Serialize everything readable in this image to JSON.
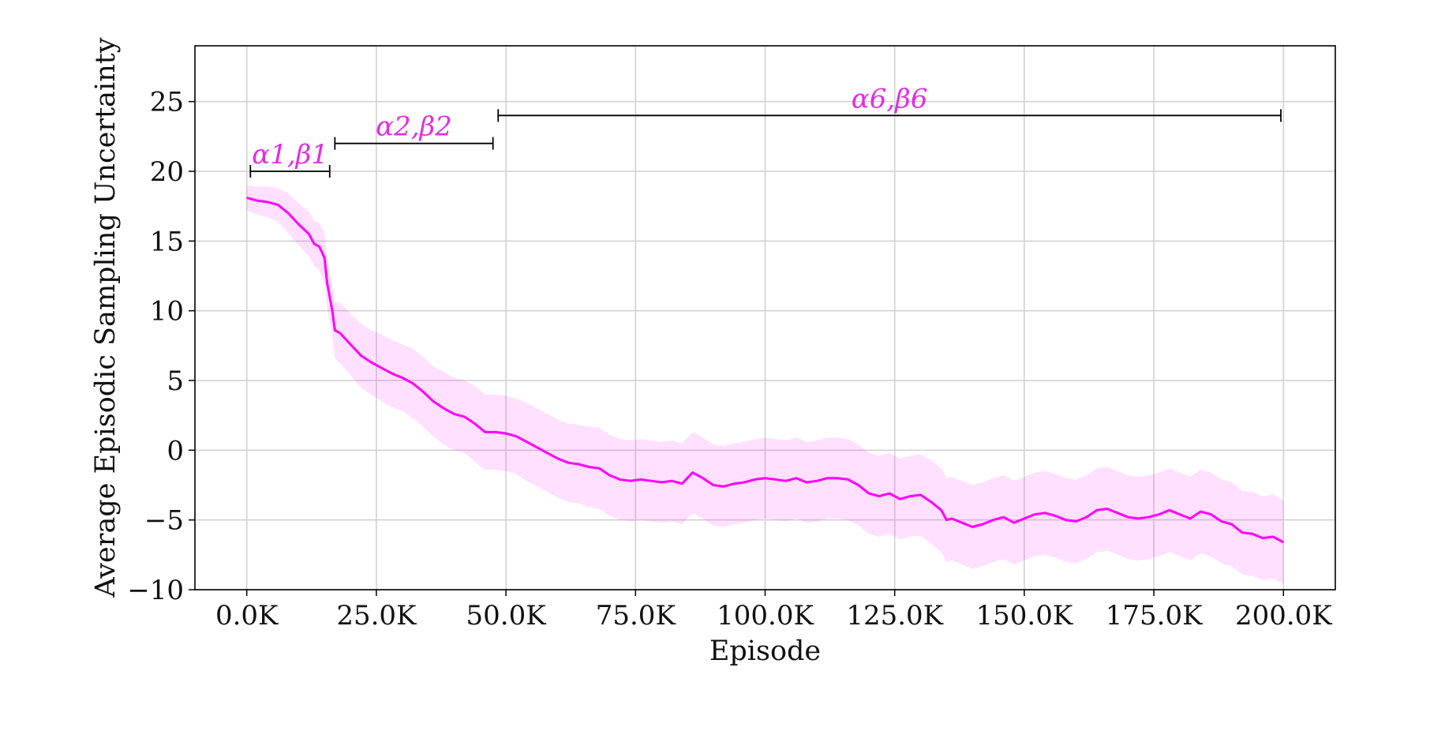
{
  "chart_data": {
    "type": "line",
    "title": "",
    "xlabel": "Episode",
    "ylabel": "Average Episodic Sampling Uncertainty",
    "xlim": [
      -10000,
      210000
    ],
    "ylim": [
      -10,
      29
    ],
    "grid": true,
    "colors": {
      "line": "#ff00ff",
      "band": "#ff00ff",
      "band_opacity": 0.12,
      "bracket": "#000000",
      "annotation": "#e22de2"
    },
    "x_ticks": [
      {
        "value": 0,
        "label": "0.0K"
      },
      {
        "value": 25000,
        "label": "25.0K"
      },
      {
        "value": 50000,
        "label": "50.0K"
      },
      {
        "value": 75000,
        "label": "75.0K"
      },
      {
        "value": 100000,
        "label": "100.0K"
      },
      {
        "value": 125000,
        "label": "125.0K"
      },
      {
        "value": 150000,
        "label": "150.0K"
      },
      {
        "value": 175000,
        "label": "175.0K"
      },
      {
        "value": 200000,
        "label": "200.0K"
      }
    ],
    "y_ticks": [
      {
        "value": -10,
        "label": "−10"
      },
      {
        "value": -5,
        "label": "−5"
      },
      {
        "value": 0,
        "label": "0"
      },
      {
        "value": 5,
        "label": "5"
      },
      {
        "value": 10,
        "label": "10"
      },
      {
        "value": 15,
        "label": "15"
      },
      {
        "value": 20,
        "label": "20"
      },
      {
        "value": 25,
        "label": "25"
      }
    ],
    "series": [
      {
        "x": [
          0,
          2000,
          4000,
          6000,
          8000,
          10000,
          12000,
          13000,
          14000,
          15000,
          15500,
          16000,
          16500,
          17000,
          18000,
          20000,
          22000,
          24000,
          26000,
          28000,
          30000,
          32000,
          34000,
          36000,
          38000,
          40000,
          42000,
          44000,
          46000,
          48000,
          50000,
          52000,
          54000,
          56000,
          58000,
          60000,
          62000,
          64000,
          66000,
          68000,
          70000,
          72000,
          74000,
          76000,
          78000,
          80000,
          82000,
          84000,
          86000,
          87000,
          88000,
          90000,
          92000,
          94000,
          96000,
          98000,
          100000,
          102000,
          104000,
          106000,
          108000,
          110000,
          112000,
          114000,
          116000,
          118000,
          120000,
          122000,
          124000,
          126000,
          128000,
          130000,
          132000,
          134000,
          135000,
          136000,
          138000,
          140000,
          142000,
          144000,
          146000,
          148000,
          150000,
          152000,
          154000,
          156000,
          158000,
          160000,
          162000,
          164000,
          166000,
          168000,
          170000,
          172000,
          174000,
          176000,
          178000,
          180000,
          182000,
          184000,
          186000,
          188000,
          190000,
          192000,
          194000,
          196000,
          198000,
          200000
        ],
        "y": [
          18.1,
          17.9,
          17.8,
          17.6,
          17.0,
          16.2,
          15.5,
          14.8,
          14.6,
          13.8,
          12.0,
          11.0,
          10.0,
          8.6,
          8.4,
          7.6,
          6.8,
          6.3,
          5.9,
          5.5,
          5.2,
          4.8,
          4.2,
          3.5,
          3.0,
          2.6,
          2.4,
          1.9,
          1.3,
          1.3,
          1.2,
          1.0,
          0.6,
          0.2,
          -0.2,
          -0.6,
          -0.9,
          -1.0,
          -1.2,
          -1.3,
          -1.8,
          -2.1,
          -2.2,
          -2.1,
          -2.2,
          -2.3,
          -2.2,
          -2.4,
          -1.6,
          -1.8,
          -2.0,
          -2.5,
          -2.6,
          -2.4,
          -2.3,
          -2.1,
          -2.0,
          -2.1,
          -2.2,
          -2.0,
          -2.3,
          -2.2,
          -2.0,
          -2.0,
          -2.1,
          -2.5,
          -3.1,
          -3.3,
          -3.1,
          -3.5,
          -3.3,
          -3.2,
          -3.7,
          -4.3,
          -5.0,
          -4.9,
          -5.2,
          -5.5,
          -5.3,
          -5.0,
          -4.8,
          -5.2,
          -4.9,
          -4.6,
          -4.5,
          -4.7,
          -5.0,
          -5.1,
          -4.8,
          -4.3,
          -4.2,
          -4.5,
          -4.8,
          -4.9,
          -4.8,
          -4.6,
          -4.3,
          -4.6,
          -4.9,
          -4.4,
          -4.6,
          -5.1,
          -5.3,
          -5.9,
          -6.0,
          -6.3,
          -6.2,
          -6.6
        ],
        "band_halfwidth": [
          0.9,
          1.0,
          1.1,
          1.2,
          1.4,
          1.5,
          1.6,
          1.6,
          1.7,
          1.8,
          1.8,
          1.8,
          1.9,
          2.0,
          2.2,
          2.2,
          2.3,
          2.3,
          2.4,
          2.4,
          2.4,
          2.5,
          2.5,
          2.5,
          2.6,
          2.6,
          2.6,
          2.7,
          2.7,
          2.7,
          2.7,
          2.7,
          2.8,
          2.8,
          2.8,
          2.8,
          2.8,
          2.8,
          2.9,
          2.9,
          2.9,
          2.9,
          2.9,
          2.9,
          2.9,
          2.9,
          2.9,
          2.9,
          2.9,
          2.9,
          2.9,
          2.9,
          2.9,
          2.9,
          2.9,
          2.9,
          2.9,
          2.9,
          2.9,
          2.9,
          2.9,
          2.9,
          2.9,
          2.9,
          2.9,
          2.9,
          2.9,
          2.9,
          2.9,
          2.9,
          2.9,
          2.9,
          3.0,
          3.0,
          3.0,
          3.0,
          3.0,
          3.0,
          3.0,
          3.0,
          3.0,
          3.0,
          3.0,
          3.0,
          3.0,
          3.0,
          3.0,
          3.0,
          3.0,
          3.0,
          3.0,
          3.0,
          3.0,
          3.0,
          3.0,
          3.0,
          3.0,
          3.0,
          3.0,
          3.0,
          3.0,
          3.0,
          3.0,
          3.0,
          3.0,
          3.0,
          3.0,
          3.0
        ]
      }
    ],
    "annotations": [
      {
        "label": "α1,β1",
        "x_start": 700,
        "x_end": 16000,
        "y": 20
      },
      {
        "label": "α2,β2",
        "x_start": 17000,
        "x_end": 47500,
        "y": 22
      },
      {
        "label": "α6,β6",
        "x_start": 48500,
        "x_end": 199500,
        "y": 24
      }
    ]
  }
}
